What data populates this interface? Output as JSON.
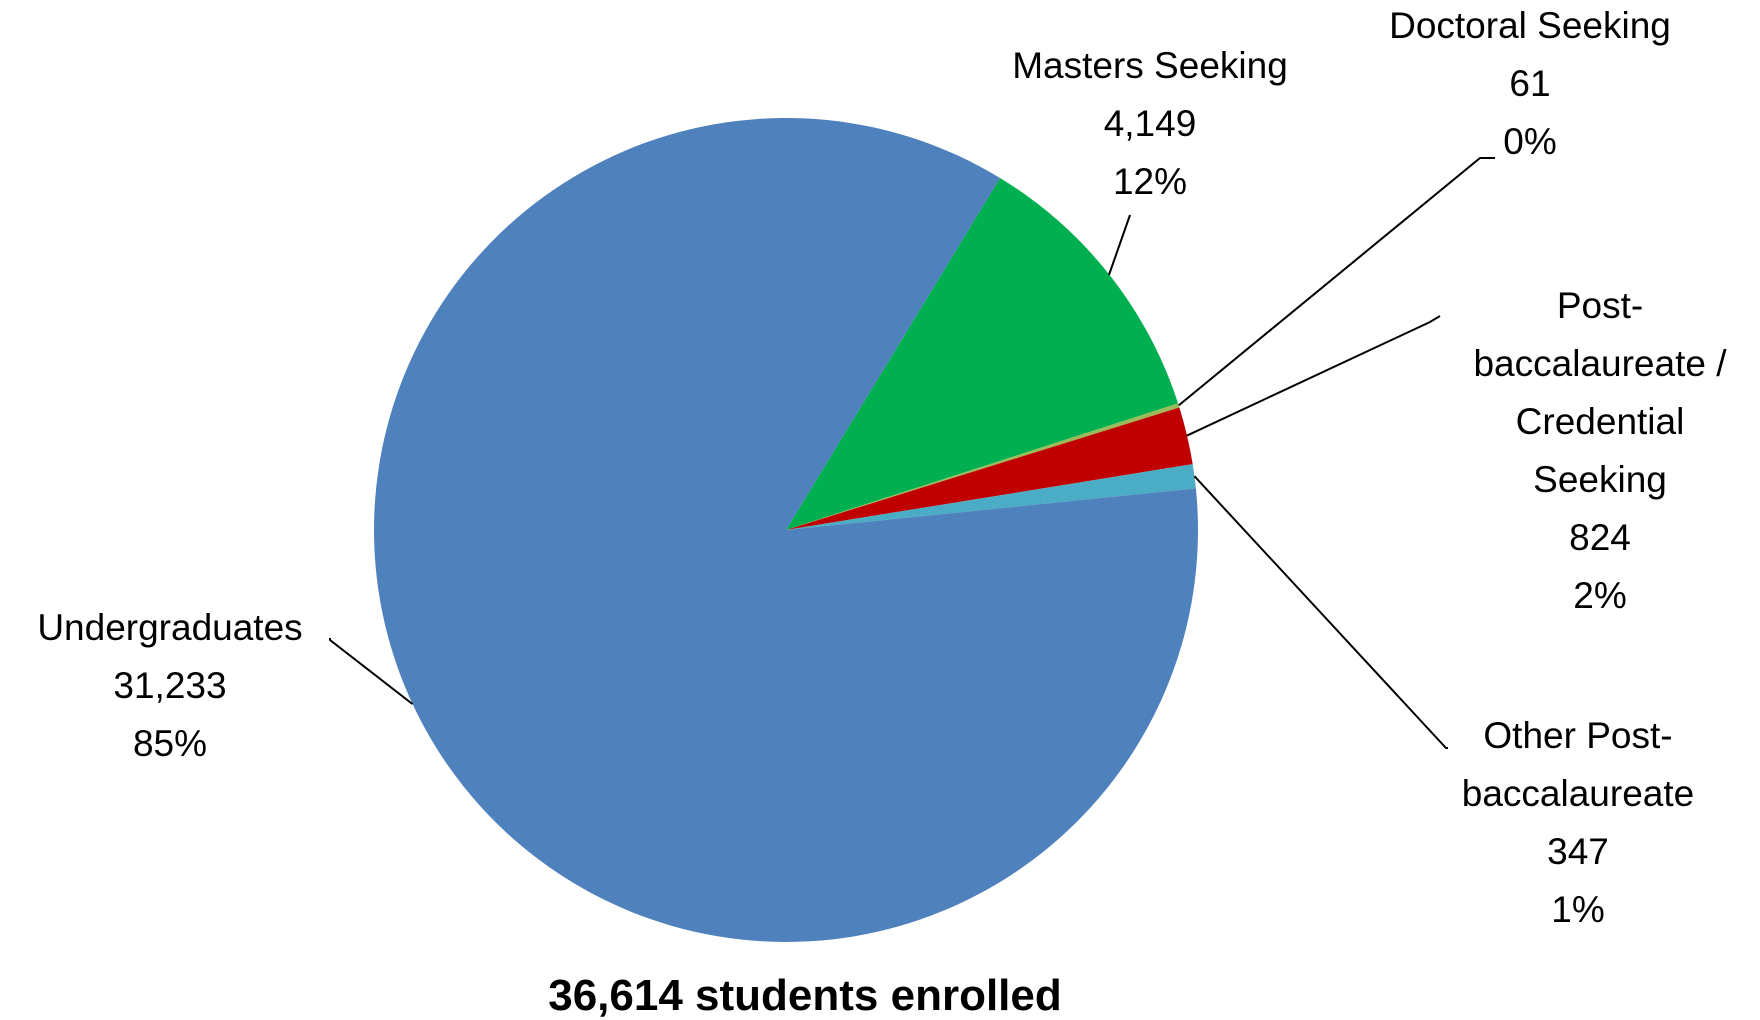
{
  "chart_data": {
    "type": "pie",
    "title": "36,614 students enrolled",
    "slices": [
      {
        "label": "Masters Seeking",
        "label_lines": [
          "Masters Seeking"
        ],
        "value": 4149,
        "value_label": "4,149",
        "percent_label": "12%",
        "color": "#00B050"
      },
      {
        "label": "Doctoral Seeking",
        "label_lines": [
          "Doctoral Seeking"
        ],
        "value": 61,
        "value_label": "61",
        "percent_label": "0%",
        "color": "#9BBB59"
      },
      {
        "label": "Post-baccalaureate / Credential Seeking",
        "label_lines": [
          "Post-",
          "baccalaureate /",
          "Credential",
          "Seeking"
        ],
        "value": 824,
        "value_label": "824",
        "percent_label": "2%",
        "color": "#C00000"
      },
      {
        "label": "Other Post-baccalaureate",
        "label_lines": [
          "Other Post-",
          "baccalaureate"
        ],
        "value": 347,
        "value_label": "347",
        "percent_label": "1%",
        "color": "#4BACC6"
      },
      {
        "label": "Undergraduates",
        "label_lines": [
          "Undergraduates"
        ],
        "value": 31233,
        "value_label": "31,233",
        "percent_label": "85%",
        "color": "#4F81BD"
      }
    ]
  }
}
